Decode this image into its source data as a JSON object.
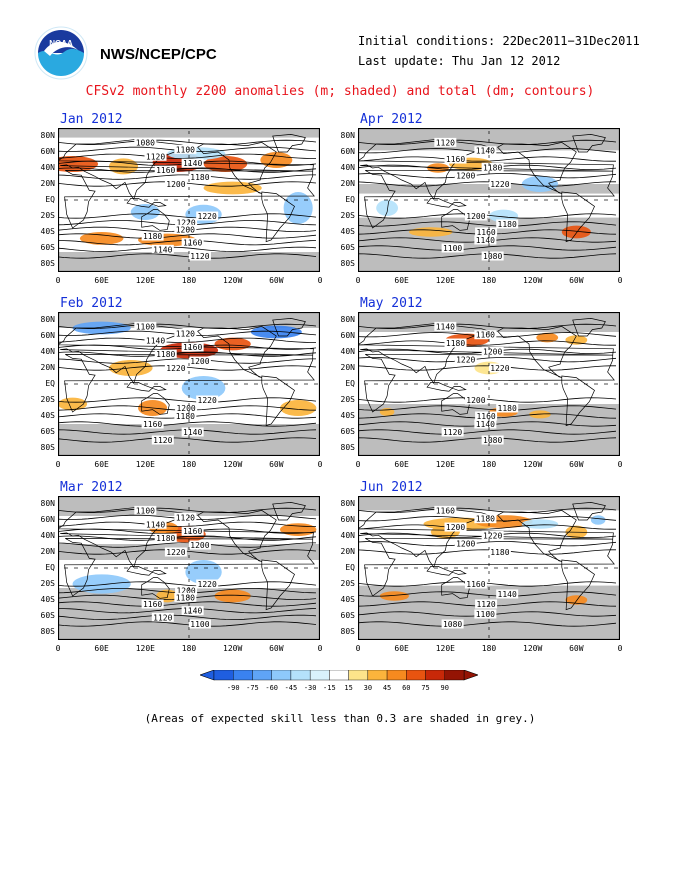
{
  "header": {
    "org": "NWS/NCEP/CPC",
    "initial_conditions": "Initial conditions: 22Dec2011−31Dec2011",
    "last_update": "Last update: Thu Jan 12 2012",
    "title": "CFSv2 monthly z200 anomalies (m; shaded) and total (dm; contours)",
    "logo_icon": "noaa-logo-icon"
  },
  "map_axes": {
    "lat_labels": [
      "80N",
      "60N",
      "40N",
      "20N",
      "EQ",
      "20S",
      "40S",
      "60S",
      "80S"
    ],
    "lon_labels": [
      "0",
      "60E",
      "120E",
      "180",
      "120W",
      "60W",
      "0"
    ]
  },
  "panels": [
    {
      "title": "Jan 2012",
      "contours": [
        "1080",
        "1100",
        "1120",
        "1140",
        "1160",
        "1180",
        "1200",
        "1220",
        "1220",
        "1200",
        "1180",
        "1160",
        "1140",
        "1120"
      ]
    },
    {
      "title": "Apr 2012",
      "contours": [
        "1120",
        "1140",
        "1160",
        "1180",
        "1200",
        "1220",
        "1200",
        "1180",
        "1160",
        "1140",
        "1100",
        "1080"
      ]
    },
    {
      "title": "Feb 2012",
      "contours": [
        "1100",
        "1120",
        "1140",
        "1160",
        "1180",
        "1200",
        "1220",
        "1220",
        "1200",
        "1180",
        "1160",
        "1140",
        "1120"
      ]
    },
    {
      "title": "May 2012",
      "contours": [
        "1140",
        "1160",
        "1180",
        "1200",
        "1220",
        "1220",
        "1200",
        "1180",
        "1160",
        "1140",
        "1120",
        "1080"
      ]
    },
    {
      "title": "Mar 2012",
      "contours": [
        "1100",
        "1120",
        "1140",
        "1160",
        "1180",
        "1200",
        "1220",
        "1220",
        "1200",
        "1180",
        "1160",
        "1140",
        "1120",
        "1100"
      ]
    },
    {
      "title": "Jun 2012",
      "contours": [
        "1160",
        "1180",
        "1200",
        "1220",
        "1200",
        "1180",
        "1160",
        "1140",
        "1120",
        "1100",
        "1080"
      ]
    }
  ],
  "colorbar": {
    "labels": [
      "-90",
      "-75",
      "-60",
      "-45",
      "-30",
      "-15",
      "15",
      "30",
      "45",
      "60",
      "75",
      "90"
    ],
    "colors": [
      "#1f5ee0",
      "#3a82f0",
      "#5fa4f6",
      "#8ec9fb",
      "#b4e2fb",
      "#d9f2fc",
      "#ffffff",
      "#fde48a",
      "#fbb43c",
      "#f68a1f",
      "#e85410",
      "#c82808",
      "#941404"
    ]
  },
  "footnote": "(Areas of expected skill less than 0.3 are shaded in grey.)"
}
